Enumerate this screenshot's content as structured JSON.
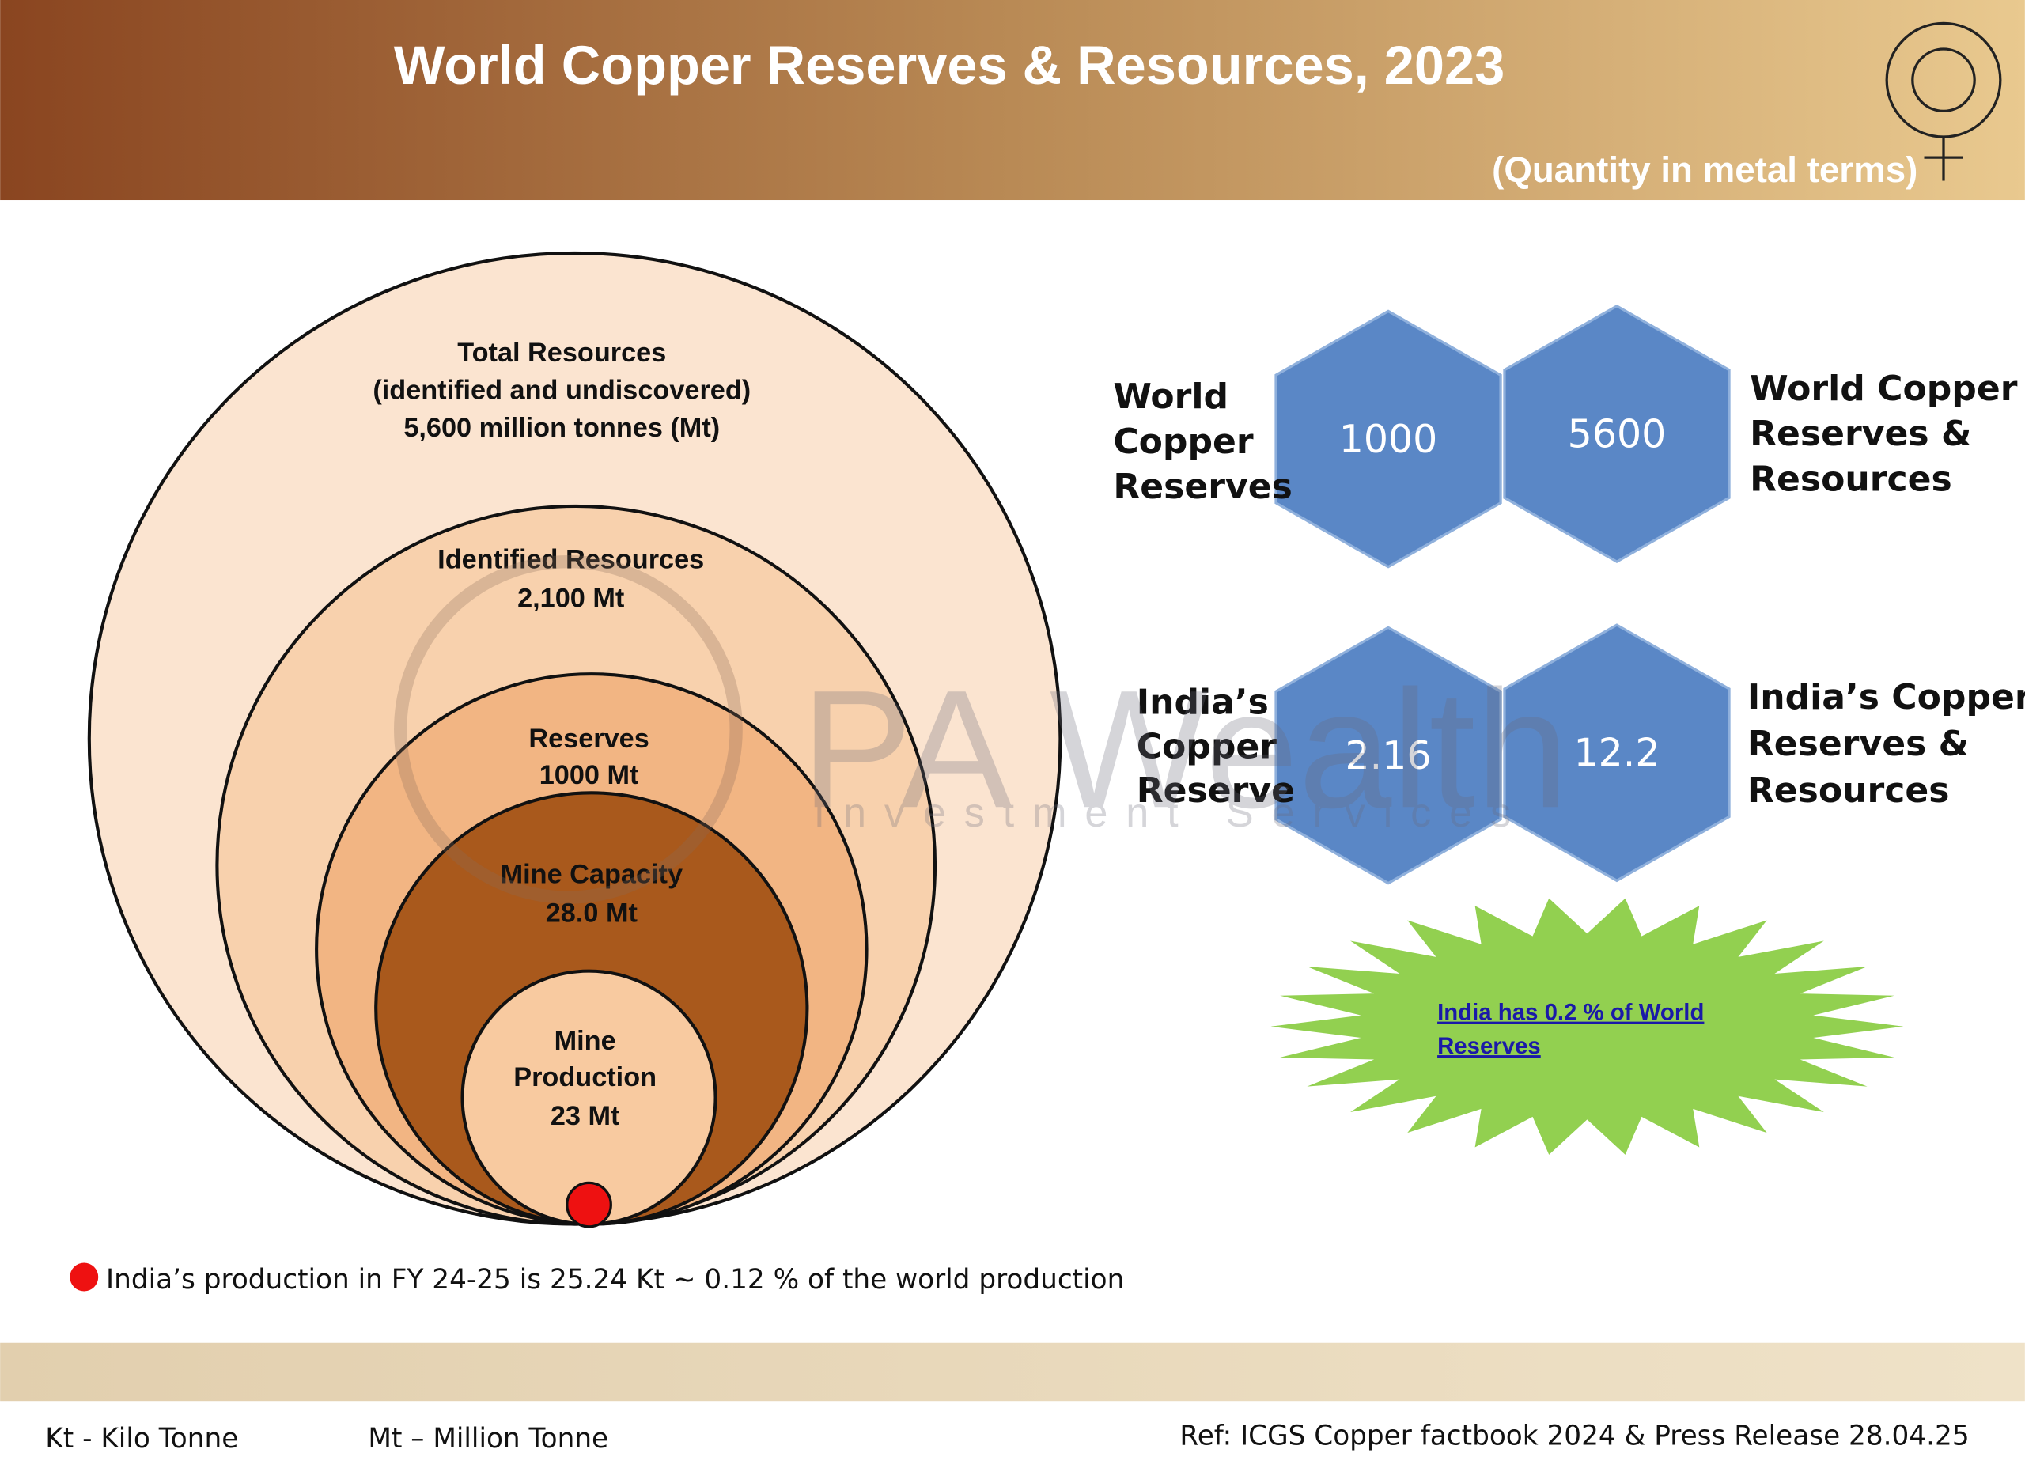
{
  "header": {
    "title": "World Copper Reserves & Resources, 2023",
    "subtitle": "(Quantity in metal terms)"
  },
  "circles": [
    {
      "lines": [
        "Total Resources",
        "(identified and undiscovered)",
        "5,600 million tonnes (Mt)"
      ]
    },
    {
      "lines": [
        "Identified Resources",
        "2,100 Mt"
      ]
    },
    {
      "lines": [
        "Reserves",
        "1000 Mt"
      ]
    },
    {
      "lines": [
        "Mine Capacity",
        "28.0 Mt"
      ]
    },
    {
      "lines": [
        "Mine",
        "Production",
        "23 Mt"
      ]
    }
  ],
  "hexagons": [
    {
      "label": [
        "World",
        "Copper",
        "Reserves"
      ],
      "value": 1000
    },
    {
      "label": [
        "World Copper",
        "Reserves &",
        "Resources"
      ],
      "value": 5600
    },
    {
      "label": [
        "India’s",
        "Copper",
        "Reserve"
      ],
      "value": 2.16
    },
    {
      "label": [
        "India’s Copper",
        "Reserves &",
        "Resources"
      ],
      "value": 12.2
    }
  ],
  "starburst": {
    "lines": [
      "India has 0.2 % of World",
      "Reserves"
    ]
  },
  "note": "India’s production in FY 24-25 is 25.24 Kt ~ 0.12 % of the world production",
  "watermark": {
    "brand": "PA Wealth",
    "tagline": "Investment Services"
  },
  "footer": {
    "left": "Kt - Kilo Tonne",
    "middle": "Mt – Million Tonne",
    "right": "Ref: ICGS Copper factbook 2024 & Press Release 28.04.25"
  }
}
